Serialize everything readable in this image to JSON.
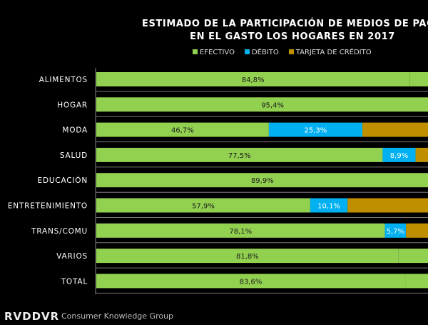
{
  "chart_data": {
    "type": "bar",
    "orientation": "horizontal",
    "stacked": true,
    "title_line1": "ESTIMADO DE LA PARTICIPACIÓN DE MEDIOS DE PAGO",
    "title_line2": "EN EL GASTO LOS HOGARES EN 2017",
    "legend_position": "top",
    "categories": [
      "ALIMENTOS",
      "HOGAR",
      "MODA",
      "SALUD",
      "EDUCACIÓN",
      "ENTRETENIMIENTO",
      "TRANS/COMU",
      "VARIOS",
      "TOTAL"
    ],
    "series": [
      {
        "name": "EFECTIVO",
        "color": "#92d050",
        "label_color": "#1a1a1a",
        "values": [
          84.8,
          95.4,
          46.7,
          77.5,
          89.9,
          57.9,
          78.1,
          81.8,
          83.6
        ],
        "labels": [
          "84,8%",
          "95,4%",
          "46,7%",
          "77,5%",
          "89,9%",
          "57,9%",
          "78,1%",
          "81,8%",
          "83,6%"
        ]
      },
      {
        "name": "DÉBITO",
        "color": "#00b0f0",
        "label_color": "#ffffff",
        "values": [
          null,
          null,
          25.3,
          8.9,
          null,
          10.1,
          5.7,
          null,
          null
        ],
        "labels": [
          "",
          "",
          "25,3%",
          "8,9%",
          "",
          "10,1%",
          "5,7%",
          "",
          ""
        ]
      },
      {
        "name": "TARJETA DE CRÉDITO",
        "color": "#bf8f00",
        "label_color": "#ffffff",
        "values": [
          null,
          null,
          null,
          null,
          null,
          null,
          null,
          null,
          null
        ],
        "labels": [
          "",
          "",
          "",
          "",
          "",
          "",
          "",
          "",
          ""
        ]
      }
    ]
  },
  "footer": {
    "logo": "RADDAR",
    "brand": "Consumer Knowledge Group"
  }
}
